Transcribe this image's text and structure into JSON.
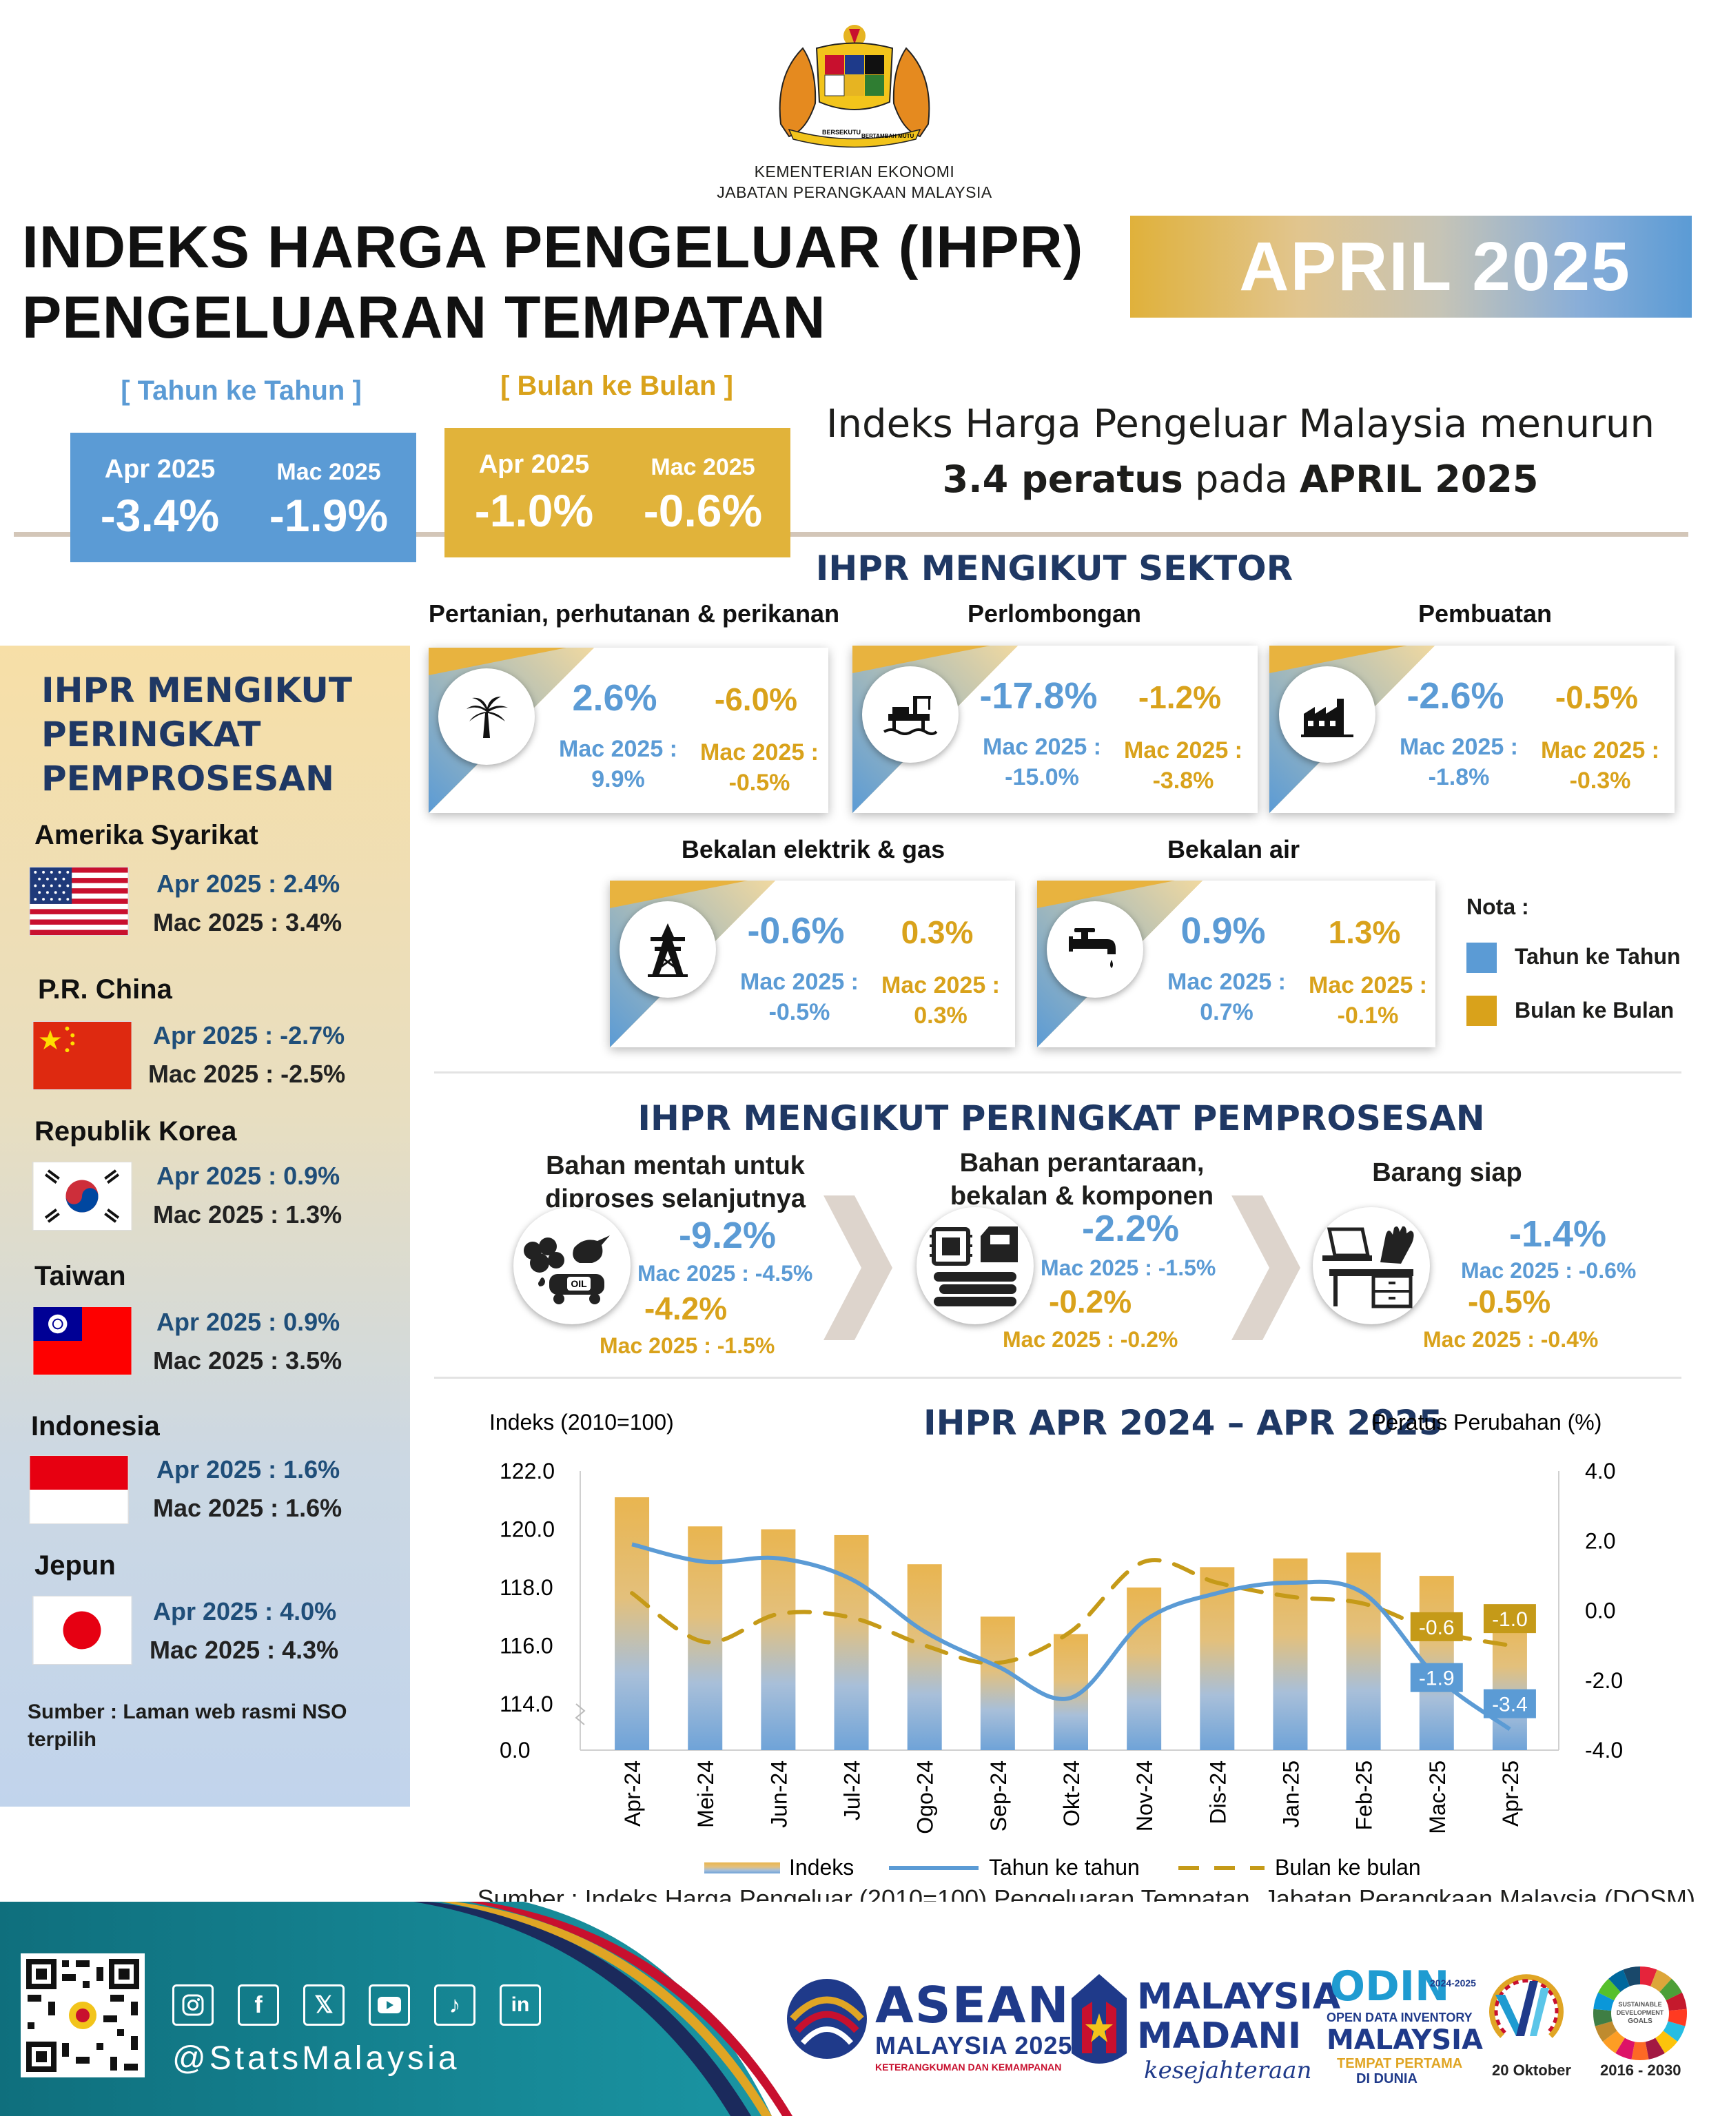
{
  "header": {
    "ministry_line1": "KEMENTERIAN EKONOMI",
    "ministry_line2": "JABATAN PERANGKAAN MALAYSIA",
    "crest_motto_left": "BERSEKUTU",
    "crest_motto_right": "BERTAMBAH MUTU",
    "title_line1": "INDEKS HARGA PENGELUAR (IHPR)",
    "title_line2": "PENGELUARAN TEMPATAN",
    "period": "APRIL 2025"
  },
  "kpi": {
    "yoy": {
      "label": "[ Tahun ke Tahun ]",
      "cur_month": "Apr 2025",
      "cur_value": "-3.4%",
      "prev_month": "Mac 2025",
      "prev_value": "-1.9%"
    },
    "mom": {
      "label": "[ Bulan ke Bulan ]",
      "cur_month": "Apr 2025",
      "cur_value": "-1.0%",
      "prev_month": "Mac 2025",
      "prev_value": "-0.6%"
    }
  },
  "summary": {
    "line1": "Indeks Harga Pengeluar Malaysia menurun",
    "bold_value": "3.4 peratus",
    "mid": " pada ",
    "bold_period": "APRIL 2025"
  },
  "sector": {
    "title": "IHPR MENGIKUT SEKTOR",
    "items": [
      {
        "name": "Pertanian, perhutanan & perikanan",
        "icon": "palm-tree-icon",
        "yoy": "2.6%",
        "mom": "-6.0%",
        "yoy_prev_label": "Mac 2025 :",
        "yoy_prev": "9.9%",
        "mom_prev_label": "Mac 2025 :",
        "mom_prev": "-0.5%"
      },
      {
        "name": "Perlombongan",
        "icon": "oil-rig-icon",
        "yoy": "-17.8%",
        "mom": "-1.2%",
        "yoy_prev_label": "Mac 2025 :",
        "yoy_prev": "-15.0%",
        "mom_prev_label": "Mac 2025 :",
        "mom_prev": "-3.8%"
      },
      {
        "name": "Pembuatan",
        "icon": "factory-icon",
        "yoy": "-2.6%",
        "mom": "-0.5%",
        "yoy_prev_label": "Mac 2025 :",
        "yoy_prev": "-1.8%",
        "mom_prev_label": "Mac 2025 :",
        "mom_prev": "-0.3%"
      },
      {
        "name": "Bekalan elektrik & gas",
        "icon": "power-tower-icon",
        "yoy": "-0.6%",
        "mom": "0.3%",
        "yoy_prev_label": "Mac 2025 :",
        "yoy_prev": "-0.5%",
        "mom_prev_label": "Mac 2025 :",
        "mom_prev": "0.3%"
      },
      {
        "name": "Bekalan air",
        "icon": "water-tap-icon",
        "yoy": "0.9%",
        "mom": "1.3%",
        "yoy_prev_label": "Mac 2025 :",
        "yoy_prev": "0.7%",
        "mom_prev_label": "Mac 2025 :",
        "mom_prev": "-0.1%"
      }
    ],
    "legend_title": "Nota :",
    "legend_yoy": "Tahun ke Tahun",
    "legend_mom": "Bulan ke Bulan",
    "color_yoy": "#5b9bd5",
    "color_mom": "#d9a21b"
  },
  "countries": {
    "title_line1": "IHPR MENGIKUT",
    "title_line2": "PERINGKAT",
    "title_line3": "PEMPROSESAN",
    "items": [
      {
        "name": "Amerika Syarikat",
        "flag": "us-flag-icon",
        "apr": "Apr 2025 : 2.4%",
        "mac": "Mac 2025 : 3.4%"
      },
      {
        "name": "P.R. China",
        "flag": "china-flag-icon",
        "apr": "Apr 2025 : -2.7%",
        "mac": "Mac 2025 : -2.5%"
      },
      {
        "name": "Republik Korea",
        "flag": "korea-flag-icon",
        "apr": "Apr 2025 : 0.9%",
        "mac": "Mac 2025 : 1.3%"
      },
      {
        "name": "Taiwan",
        "flag": "taiwan-flag-icon",
        "apr": "Apr 2025 : 0.9%",
        "mac": "Mac 2025 : 3.5%"
      },
      {
        "name": "Indonesia",
        "flag": "indonesia-flag-icon",
        "apr": "Apr 2025 : 1.6%",
        "mac": "Mac 2025 : 1.6%"
      },
      {
        "name": "Jepun",
        "flag": "japan-flag-icon",
        "apr": "Apr 2025 : 4.0%",
        "mac": "Mac 2025 : 4.3%"
      }
    ],
    "source": "Sumber : Laman web rasmi NSO terpilih"
  },
  "stages": {
    "title": "IHPR MENGIKUT PERINGKAT PEMPROSESAN",
    "items": [
      {
        "name_line1": "Bahan mentah untuk",
        "name_line2": "diproses selanjutnya",
        "icon": "raw-materials-icon",
        "oil_label": "OIL",
        "yoy": "-9.2%",
        "yoy_prev": "Mac 2025 : -4.5%",
        "mom": "-4.2%",
        "mom_prev": "Mac 2025 : -1.5%"
      },
      {
        "name_line1": "Bahan perantaraan,",
        "name_line2": "bekalan & komponen",
        "icon": "components-icon",
        "yoy": "-2.2%",
        "yoy_prev": "Mac 2025 : -1.5%",
        "mom": "-0.2%",
        "mom_prev": "Mac 2025 : -0.2%"
      },
      {
        "name_line1": "Barang siap",
        "name_line2": "",
        "icon": "finished-goods-icon",
        "yoy": "-1.4%",
        "yoy_prev": "Mac 2025 : -0.6%",
        "mom": "-0.5%",
        "mom_prev": "Mac 2025 : -0.4%"
      }
    ]
  },
  "chart_data": {
    "type": "bar",
    "title": "IHPR APR 2024 – APR 2025",
    "ylabel_left": "Indeks (2010=100)",
    "ylabel_right": "Peratus Perubahan  (%)",
    "categories": [
      "Apr-24",
      "Mei-24",
      "Jun-24",
      "Jul-24",
      "Ogo-24",
      "Sep-24",
      "Okt-24",
      "Nov-24",
      "Dis-24",
      "Jan-25",
      "Feb-25",
      "Mac-25",
      "Apr-25"
    ],
    "left_ticks": [
      "122.0",
      "120.0",
      "118.0",
      "116.0",
      "114.0",
      "0.0"
    ],
    "right_ticks": [
      "4.0",
      "2.0",
      "0.0",
      "-2.0",
      "-4.0"
    ],
    "left_axis_break": true,
    "ylim_left": [
      112.0,
      122.0
    ],
    "ylim_right": [
      -4.0,
      4.0
    ],
    "series": [
      {
        "name": "Indeks",
        "type": "bar",
        "values": [
          121.1,
          120.1,
          120.0,
          119.8,
          118.8,
          117.0,
          116.4,
          118.0,
          118.7,
          119.0,
          119.2,
          118.4,
          117.2
        ]
      },
      {
        "name": "Tahun ke tahun",
        "type": "line",
        "values": [
          1.9,
          1.4,
          1.5,
          0.9,
          -0.6,
          -1.6,
          -2.5,
          -0.3,
          0.5,
          0.8,
          0.5,
          -1.9,
          -3.4
        ]
      },
      {
        "name": "Bulan ke bulan",
        "type": "line-dashed",
        "values": [
          0.5,
          -0.9,
          -0.1,
          -0.2,
          -1.0,
          -1.5,
          -0.6,
          1.4,
          0.8,
          0.4,
          0.2,
          -0.6,
          -1.0
        ]
      }
    ],
    "data_labels": {
      "mac_yoy": "-1.9",
      "apr_yoy": "-3.4",
      "mac_mom": "-0.6",
      "apr_mom": "-1.0"
    },
    "legend": [
      "Indeks",
      "Tahun ke tahun",
      "Bulan ke bulan"
    ],
    "legend_placement": "bottom",
    "colors": {
      "bar_top": "#e9b550",
      "bar_bottom": "#6fa3d8",
      "yoy": "#5b9bd5",
      "mom": "#c59a18"
    }
  },
  "source_main": "Sumber : Indeks Harga Pengeluar (2010=100) Pengeluaran Tempatan, Jabatan Perangkaan Malaysia (DOSM)",
  "footer": {
    "handle": "@StatsMalaysia",
    "socials": [
      "instagram-icon",
      "facebook-icon",
      "x-icon",
      "youtube-icon",
      "tiktok-icon",
      "linkedin-icon"
    ],
    "asean_line1": "ASEAN",
    "asean_line2": "MALAYSIA 2025",
    "asean_tag": "KETERANGKUMAN DAN KEMAMPANAN",
    "madani_line1": "MALAYSIA",
    "madani_line2": "MADANI",
    "madani_tag": "kesejahteraan",
    "odin_title": "ODIN",
    "odin_years": "2024-2025",
    "odin_line1": "OPEN DATA INVENTORY",
    "odin_line2": "MALAYSIA",
    "odin_line3": "TEMPAT PERTAMA",
    "odin_line4": "DI DUNIA",
    "statday_date": "20 Oktober",
    "sdg_years": "2016 - 2030",
    "sdg_label": "SUSTAINABLE DEVELOPMENT GOALS MALAYSIA"
  }
}
